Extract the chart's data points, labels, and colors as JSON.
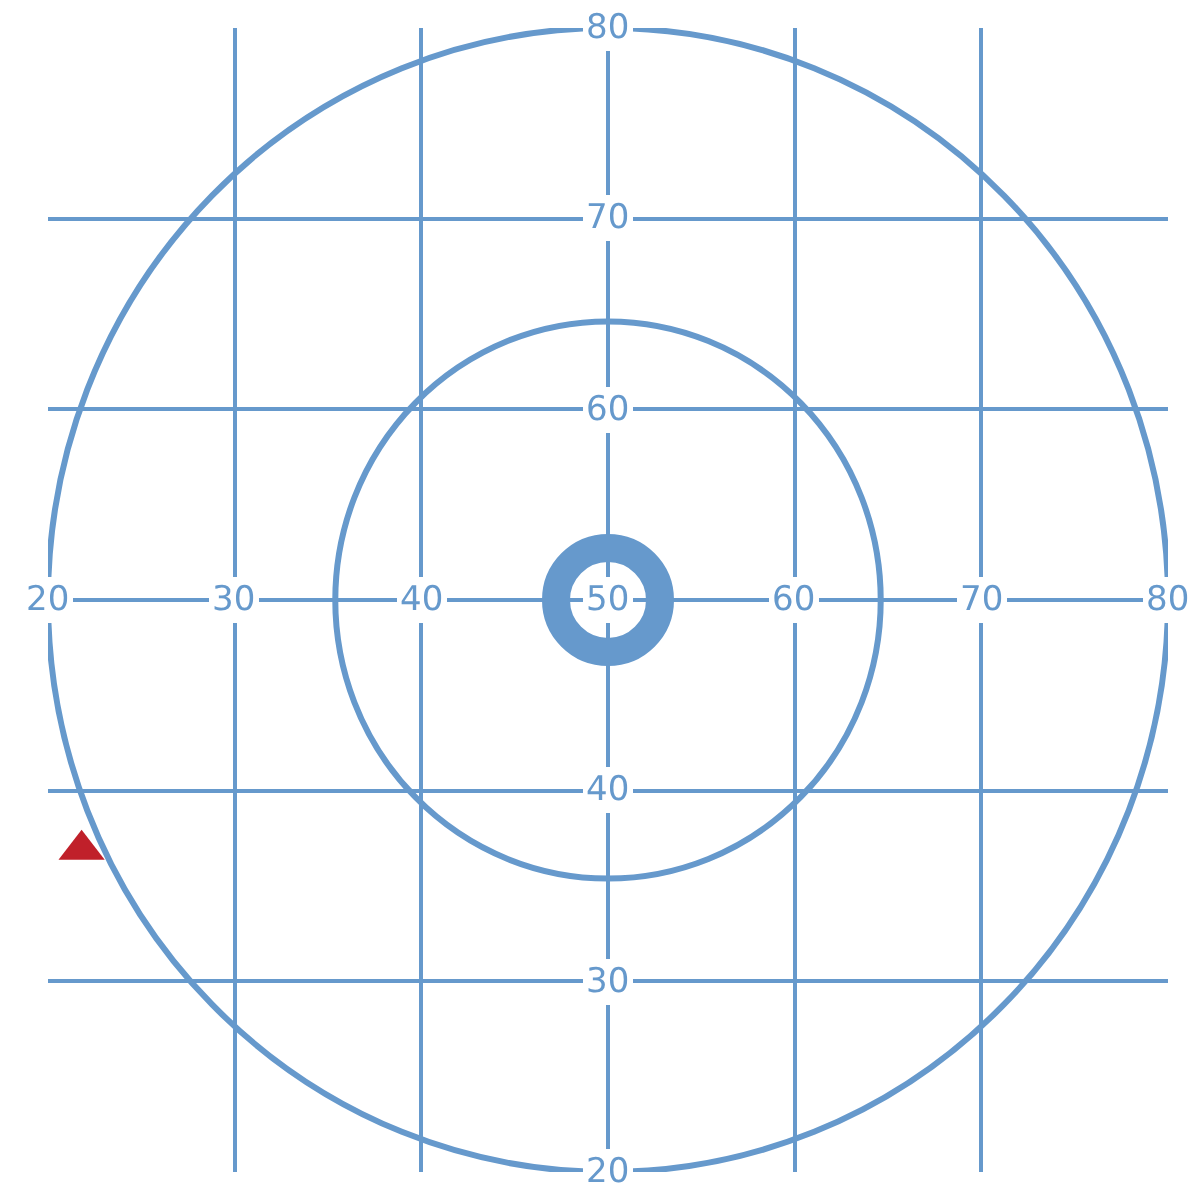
{
  "chart_data": {
    "type": "scatter",
    "xlim": [
      20,
      80
    ],
    "ylim": [
      20,
      80
    ],
    "xticks": [
      20,
      30,
      40,
      50,
      60,
      70,
      80
    ],
    "yticks": [
      20,
      30,
      40,
      {
        "value": 50,
        "label": null
      },
      60,
      70,
      80
    ],
    "grid": true,
    "series": [
      {
        "x": [
          50
        ],
        "values": [
          50
        ],
        "color": "#6699cc",
        "marker": "circle"
      },
      {
        "x": [
          21.8
        ],
        "values": [
          36.9
        ],
        "color": "#c0202a",
        "marker": "triangle"
      }
    ]
  }
}
